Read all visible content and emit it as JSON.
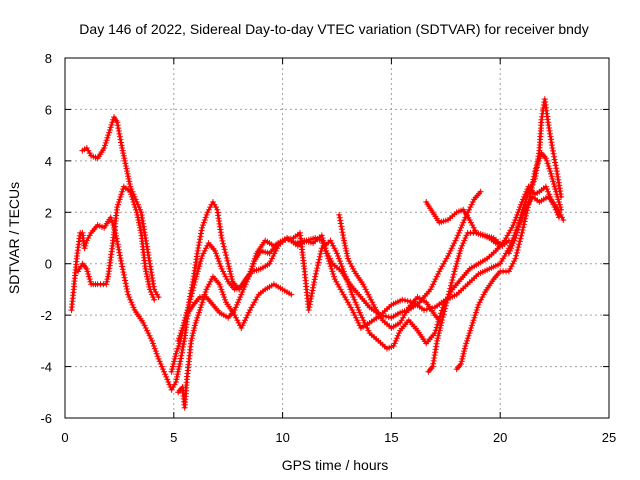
{
  "chart_data": {
    "type": "scatter",
    "title": "Day 146 of 2022, Sidereal Day-to-day VTEC variation (SDTVAR) for receiver bndy",
    "xlabel": "GPS time / hours",
    "ylabel": "SDTVAR / TECUs",
    "xlim": [
      0,
      25
    ],
    "ylim": [
      -6,
      8
    ],
    "x_ticks": [
      0,
      5,
      10,
      15,
      20,
      25
    ],
    "y_ticks": [
      -6,
      -4,
      -2,
      0,
      2,
      4,
      6,
      8
    ],
    "grid": true,
    "marker": "+",
    "color": "#ff0000",
    "series": [
      {
        "points": [
          [
            0.8,
            4.4
          ],
          [
            1.0,
            4.5
          ],
          [
            1.2,
            4.2
          ],
          [
            1.5,
            4.1
          ],
          [
            1.8,
            4.5
          ],
          [
            2.1,
            5.3
          ],
          [
            2.25,
            5.7
          ],
          [
            2.4,
            5.5
          ],
          [
            2.6,
            4.6
          ],
          [
            2.8,
            3.8
          ],
          [
            3.0,
            3.0
          ],
          [
            3.2,
            2.6
          ],
          [
            3.5,
            2.0
          ],
          [
            3.7,
            1.0
          ],
          [
            3.9,
            0.0
          ],
          [
            4.1,
            -1.0
          ],
          [
            4.3,
            -1.3
          ]
        ]
      },
      {
        "points": [
          [
            0.3,
            -1.8
          ],
          [
            0.4,
            -1.0
          ],
          [
            0.55,
            0.3
          ],
          [
            0.7,
            1.2
          ],
          [
            0.8,
            1.2
          ],
          [
            0.9,
            0.6
          ],
          [
            1.0,
            0.9
          ],
          [
            1.2,
            1.2
          ],
          [
            1.5,
            1.5
          ],
          [
            1.8,
            1.4
          ],
          [
            2.1,
            1.8
          ],
          [
            2.3,
            1.3
          ],
          [
            2.6,
            0.0
          ],
          [
            2.9,
            -1.2
          ],
          [
            3.2,
            -1.8
          ],
          [
            3.6,
            -2.3
          ],
          [
            4.0,
            -3.0
          ],
          [
            4.3,
            -3.7
          ],
          [
            4.6,
            -4.3
          ],
          [
            4.9,
            -4.9
          ],
          [
            5.1,
            -4.6
          ],
          [
            5.3,
            -3.8
          ],
          [
            5.5,
            -2.9
          ],
          [
            5.7,
            -1.5
          ],
          [
            5.9,
            -0.6
          ],
          [
            6.1,
            0.5
          ],
          [
            6.3,
            1.4
          ],
          [
            6.55,
            2.0
          ],
          [
            6.8,
            2.4
          ],
          [
            7.0,
            2.1
          ],
          [
            7.2,
            1.0
          ],
          [
            7.5,
            0.0
          ],
          [
            7.7,
            -0.7
          ],
          [
            8.0,
            -1.0
          ],
          [
            8.3,
            -0.6
          ],
          [
            8.6,
            -0.3
          ],
          [
            9.0,
            -0.2
          ],
          [
            9.4,
            0.0
          ],
          [
            9.8,
            0.7
          ],
          [
            10.2,
            1.0
          ],
          [
            10.6,
            0.8
          ],
          [
            11.0,
            0.9
          ],
          [
            11.4,
            0.8
          ],
          [
            11.8,
            1.1
          ],
          [
            12.0,
            0.5
          ],
          [
            12.3,
            0.0
          ],
          [
            12.7,
            -0.3
          ],
          [
            13.1,
            -0.8
          ],
          [
            13.5,
            -1.2
          ],
          [
            14.0,
            -1.7
          ],
          [
            14.5,
            -2.0
          ],
          [
            15.0,
            -2.1
          ],
          [
            15.4,
            -1.9
          ],
          [
            15.8,
            -1.8
          ],
          [
            16.3,
            -1.5
          ],
          [
            16.8,
            -1.0
          ],
          [
            17.2,
            -0.3
          ],
          [
            17.6,
            0.3
          ],
          [
            18.0,
            1.0
          ],
          [
            18.4,
            1.8
          ],
          [
            18.8,
            2.5
          ],
          [
            19.1,
            2.8
          ]
        ]
      },
      {
        "points": [
          [
            0.6,
            -0.3
          ],
          [
            0.8,
            0.0
          ],
          [
            1.0,
            -0.2
          ],
          [
            1.2,
            -0.8
          ],
          [
            1.5,
            -0.8
          ],
          [
            1.9,
            -0.8
          ],
          [
            2.0,
            -0.4
          ],
          [
            2.2,
            0.8
          ],
          [
            2.4,
            2.2
          ],
          [
            2.7,
            3.0
          ],
          [
            3.0,
            2.8
          ],
          [
            3.3,
            2.0
          ],
          [
            3.5,
            1.2
          ],
          [
            3.7,
            -0.2
          ],
          [
            3.9,
            -1.0
          ],
          [
            4.1,
            -1.4
          ]
        ]
      },
      {
        "points": [
          [
            4.9,
            -4.2
          ],
          [
            5.1,
            -3.5
          ],
          [
            5.3,
            -3.0
          ],
          [
            5.5,
            -2.2
          ],
          [
            5.7,
            -1.6
          ],
          [
            6.0,
            -0.6
          ],
          [
            6.3,
            0.3
          ],
          [
            6.6,
            0.8
          ],
          [
            6.9,
            0.5
          ],
          [
            7.2,
            -0.2
          ],
          [
            7.5,
            -0.7
          ],
          [
            7.8,
            -1.0
          ],
          [
            8.1,
            -0.9
          ],
          [
            8.5,
            -0.4
          ],
          [
            8.8,
            0.4
          ],
          [
            9.2,
            0.9
          ],
          [
            9.6,
            0.7
          ],
          [
            10.0,
            0.9
          ],
          [
            10.5,
            1.0
          ],
          [
            10.8,
            1.2
          ],
          [
            11.0,
            -0.2
          ],
          [
            11.2,
            -1.8
          ],
          [
            11.5,
            -0.5
          ],
          [
            11.8,
            0.6
          ],
          [
            12.2,
            0.9
          ],
          [
            12.5,
            0.4
          ],
          [
            12.9,
            -0.5
          ],
          [
            13.2,
            -1.2
          ],
          [
            13.6,
            -2.0
          ],
          [
            14.0,
            -2.7
          ],
          [
            14.4,
            -3.0
          ],
          [
            14.8,
            -3.3
          ],
          [
            15.1,
            -3.2
          ],
          [
            15.4,
            -2.6
          ],
          [
            15.8,
            -2.2
          ],
          [
            16.2,
            -2.6
          ],
          [
            16.6,
            -3.1
          ],
          [
            17.0,
            -2.7
          ],
          [
            17.4,
            -1.6
          ],
          [
            17.8,
            -1.0
          ],
          [
            18.2,
            -0.6
          ],
          [
            18.6,
            -0.2
          ],
          [
            19.0,
            0.0
          ],
          [
            19.4,
            0.2
          ],
          [
            19.8,
            0.5
          ],
          [
            20.2,
            0.9
          ],
          [
            20.6,
            1.5
          ],
          [
            21.0,
            2.4
          ],
          [
            21.3,
            3.0
          ],
          [
            21.6,
            2.7
          ],
          [
            21.8,
            2.8
          ],
          [
            22.1,
            3.0
          ],
          [
            22.4,
            2.4
          ],
          [
            22.7,
            1.8
          ]
        ]
      },
      {
        "points": [
          [
            5.2,
            -5.0
          ],
          [
            5.4,
            -4.8
          ],
          [
            5.5,
            -5.6
          ],
          [
            5.6,
            -4.5
          ],
          [
            5.8,
            -3.0
          ],
          [
            6.0,
            -2.3
          ],
          [
            6.2,
            -1.8
          ],
          [
            6.5,
            -1.0
          ],
          [
            6.8,
            -0.5
          ],
          [
            7.1,
            -0.8
          ],
          [
            7.4,
            -1.5
          ],
          [
            7.8,
            -2.0
          ],
          [
            8.1,
            -2.5
          ],
          [
            8.5,
            -1.8
          ],
          [
            8.9,
            -1.2
          ],
          [
            9.2,
            -1.0
          ],
          [
            9.6,
            -0.8
          ],
          [
            10.0,
            -1.0
          ],
          [
            10.4,
            -1.2
          ]
        ]
      },
      {
        "points": [
          [
            5.2,
            -3.0
          ],
          [
            5.4,
            -2.5
          ],
          [
            5.6,
            -2.0
          ],
          [
            5.9,
            -1.6
          ],
          [
            6.2,
            -1.3
          ],
          [
            6.5,
            -1.3
          ],
          [
            6.8,
            -1.6
          ],
          [
            7.1,
            -1.9
          ],
          [
            7.5,
            -2.1
          ],
          [
            7.8,
            -1.8
          ],
          [
            8.1,
            -1.2
          ],
          [
            8.4,
            -0.6
          ],
          [
            8.7,
            0.1
          ],
          [
            9.0,
            0.5
          ],
          [
            9.4,
            0.4
          ],
          [
            9.8,
            0.8
          ],
          [
            10.2,
            1.0
          ],
          [
            10.7,
            0.7
          ],
          [
            11.1,
            0.9
          ],
          [
            11.5,
            1.0
          ],
          [
            11.8,
            0.9
          ],
          [
            12.1,
            0.2
          ],
          [
            12.4,
            -0.6
          ],
          [
            12.8,
            -1.2
          ],
          [
            13.2,
            -1.8
          ],
          [
            13.6,
            -2.5
          ],
          [
            14.0,
            -2.3
          ],
          [
            14.5,
            -2.0
          ],
          [
            15.0,
            -1.6
          ],
          [
            15.5,
            -1.4
          ],
          [
            16.0,
            -1.5
          ],
          [
            16.5,
            -1.8
          ],
          [
            17.0,
            -1.7
          ],
          [
            17.5,
            -1.4
          ],
          [
            18.0,
            -1.2
          ],
          [
            18.5,
            -0.8
          ],
          [
            19.0,
            -0.4
          ],
          [
            19.5,
            -0.2
          ],
          [
            20.0,
            0.0
          ],
          [
            20.4,
            0.6
          ],
          [
            20.8,
            1.4
          ],
          [
            21.2,
            2.2
          ],
          [
            21.5,
            2.6
          ],
          [
            21.8,
            2.4
          ],
          [
            22.2,
            2.6
          ],
          [
            22.6,
            2.2
          ],
          [
            22.9,
            1.7
          ]
        ]
      },
      {
        "points": [
          [
            12.6,
            1.9
          ],
          [
            12.8,
            1.0
          ],
          [
            13.0,
            0.2
          ],
          [
            13.3,
            -0.3
          ],
          [
            13.7,
            -0.8
          ],
          [
            14.0,
            -1.3
          ],
          [
            14.3,
            -1.8
          ],
          [
            14.6,
            -2.2
          ],
          [
            15.0,
            -2.5
          ],
          [
            15.4,
            -2.3
          ],
          [
            15.8,
            -1.7
          ],
          [
            16.2,
            -1.3
          ],
          [
            16.6,
            -1.5
          ],
          [
            17.0,
            -2.0
          ],
          [
            17.3,
            -2.3
          ]
        ]
      },
      {
        "points": [
          [
            16.6,
            2.4
          ],
          [
            16.9,
            2.0
          ],
          [
            17.2,
            1.6
          ],
          [
            17.6,
            1.7
          ],
          [
            18.0,
            2.0
          ],
          [
            18.3,
            2.1
          ],
          [
            18.6,
            1.7
          ],
          [
            18.9,
            1.2
          ],
          [
            19.2,
            1.1
          ],
          [
            19.5,
            1.0
          ],
          [
            19.8,
            0.8
          ],
          [
            20.1,
            0.7
          ],
          [
            20.4,
            0.9
          ]
        ]
      },
      {
        "points": [
          [
            16.7,
            -4.2
          ],
          [
            16.9,
            -4.0
          ],
          [
            17.1,
            -3.0
          ],
          [
            17.3,
            -2.3
          ],
          [
            17.6,
            -1.3
          ],
          [
            17.9,
            -0.3
          ],
          [
            18.2,
            0.6
          ],
          [
            18.5,
            1.2
          ],
          [
            18.9,
            1.2
          ],
          [
            19.3,
            1.1
          ],
          [
            19.7,
            1.0
          ],
          [
            20.1,
            0.7
          ]
        ]
      },
      {
        "points": [
          [
            18.0,
            -4.1
          ],
          [
            18.2,
            -3.9
          ],
          [
            18.4,
            -3.2
          ],
          [
            18.7,
            -2.4
          ],
          [
            19.0,
            -1.6
          ],
          [
            19.3,
            -1.1
          ],
          [
            19.7,
            -0.6
          ],
          [
            20.0,
            -0.3
          ],
          [
            20.4,
            -0.3
          ],
          [
            20.7,
            0.2
          ],
          [
            21.0,
            1.2
          ],
          [
            21.3,
            2.3
          ],
          [
            21.6,
            3.6
          ],
          [
            21.9,
            4.3
          ],
          [
            22.1,
            4.1
          ],
          [
            22.3,
            3.6
          ],
          [
            22.5,
            3.0
          ],
          [
            22.8,
            2.1
          ]
        ]
      },
      {
        "points": [
          [
            20.4,
            0.4
          ],
          [
            20.7,
            1.0
          ],
          [
            21.0,
            2.0
          ],
          [
            21.3,
            2.8
          ],
          [
            21.6,
            3.3
          ],
          [
            21.8,
            4.4
          ],
          [
            21.9,
            5.6
          ],
          [
            22.05,
            6.4
          ],
          [
            22.2,
            5.5
          ],
          [
            22.4,
            4.5
          ],
          [
            22.6,
            3.6
          ],
          [
            22.8,
            2.6
          ]
        ]
      }
    ]
  }
}
